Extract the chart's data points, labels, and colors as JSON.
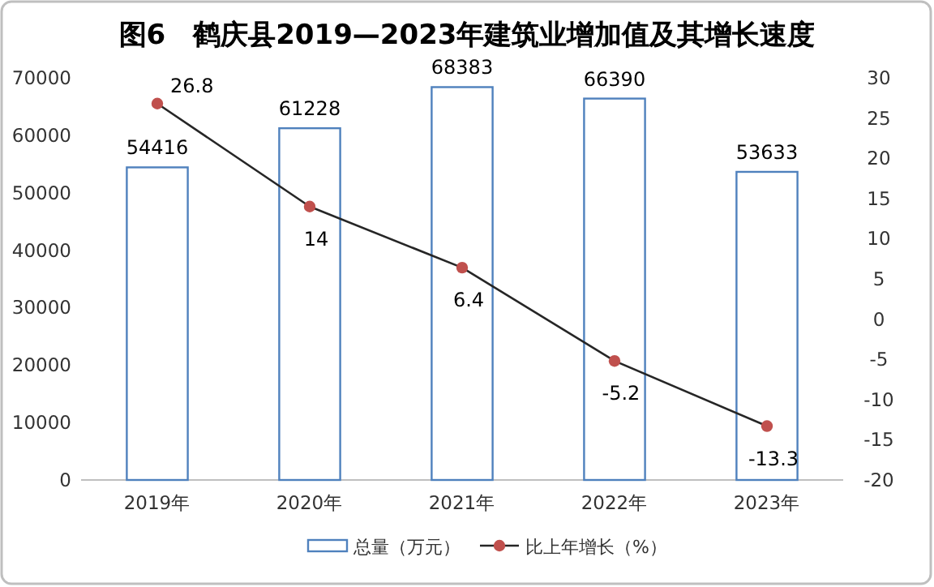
{
  "chart_data": {
    "type": "bar",
    "title": "图6　鹤庆县2019—2023年建筑业增加值及其增长速度",
    "categories": [
      "2019年",
      "2020年",
      "2021年",
      "2022年",
      "2023年"
    ],
    "series": [
      {
        "name": "总量（万元）",
        "color": "#4f81bd",
        "values": [
          54416,
          61228,
          68383,
          66390,
          53633
        ]
      },
      {
        "name": "比上年增长（%）",
        "type": "line",
        "axis": "y2",
        "color": "#c0504d",
        "marker": "circle",
        "values": [
          26.8,
          14,
          6.4,
          -5.2,
          -13.3
        ]
      }
    ],
    "ylim": [
      0,
      70000
    ],
    "yticks": [
      0,
      10000,
      20000,
      30000,
      40000,
      50000,
      60000,
      70000
    ],
    "y2lim": [
      -20,
      30
    ],
    "y2ticks": [
      -20,
      -15,
      -10,
      -5,
      0,
      5,
      10,
      15,
      20,
      25,
      30
    ],
    "data_labels": true,
    "legend": "bottom",
    "grid": false
  }
}
